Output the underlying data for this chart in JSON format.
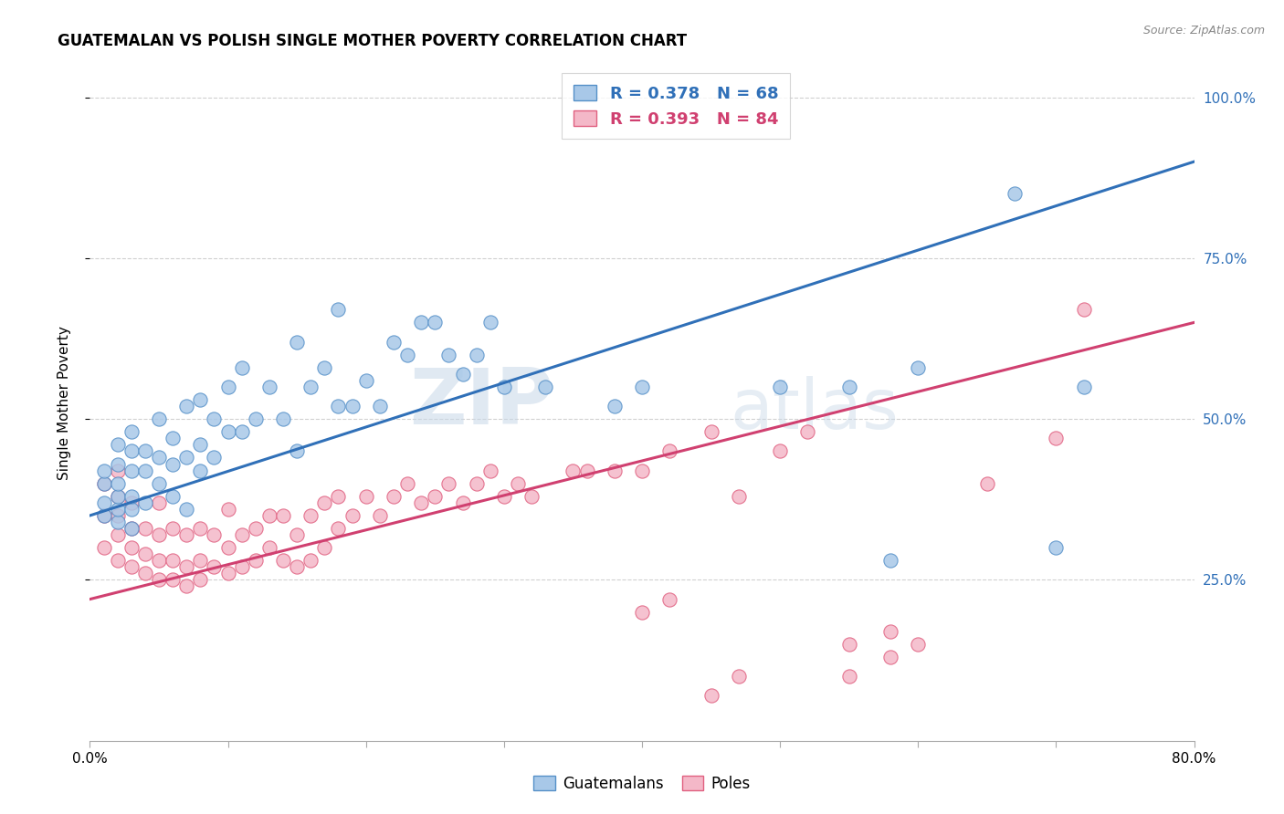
{
  "title": "GUATEMALAN VS POLISH SINGLE MOTHER POVERTY CORRELATION CHART",
  "source": "Source: ZipAtlas.com",
  "ylabel": "Single Mother Poverty",
  "legend_labels": [
    "Guatemalans",
    "Poles"
  ],
  "blue_R": 0.378,
  "blue_N": 68,
  "pink_R": 0.393,
  "pink_N": 84,
  "blue_color": "#a8c8e8",
  "pink_color": "#f4b8c8",
  "blue_edge_color": "#5590c8",
  "pink_edge_color": "#e06080",
  "blue_line_color": "#3070b8",
  "pink_line_color": "#d04070",
  "right_tick_color": "#3070b8",
  "ytick_labels": [
    "25.0%",
    "50.0%",
    "75.0%",
    "100.0%"
  ],
  "ytick_positions": [
    0.25,
    0.5,
    0.75,
    1.0
  ],
  "xmin": 0.0,
  "xmax": 0.8,
  "ymin": 0.0,
  "ymax": 1.05,
  "blue_line_x0": 0.0,
  "blue_line_y0": 0.35,
  "blue_line_x1": 0.8,
  "blue_line_y1": 0.9,
  "pink_line_x0": 0.0,
  "pink_line_y0": 0.22,
  "pink_line_x1": 0.8,
  "pink_line_y1": 0.65,
  "blue_scatter_x": [
    0.01,
    0.01,
    0.01,
    0.01,
    0.02,
    0.02,
    0.02,
    0.02,
    0.02,
    0.02,
    0.03,
    0.03,
    0.03,
    0.03,
    0.03,
    0.03,
    0.04,
    0.04,
    0.04,
    0.05,
    0.05,
    0.05,
    0.06,
    0.06,
    0.06,
    0.07,
    0.07,
    0.07,
    0.08,
    0.08,
    0.08,
    0.09,
    0.09,
    0.1,
    0.1,
    0.11,
    0.11,
    0.12,
    0.13,
    0.14,
    0.15,
    0.15,
    0.16,
    0.17,
    0.18,
    0.18,
    0.19,
    0.2,
    0.21,
    0.22,
    0.23,
    0.24,
    0.25,
    0.26,
    0.27,
    0.28,
    0.29,
    0.3,
    0.33,
    0.38,
    0.4,
    0.5,
    0.55,
    0.58,
    0.6,
    0.67,
    0.7,
    0.72
  ],
  "blue_scatter_y": [
    0.35,
    0.37,
    0.4,
    0.42,
    0.34,
    0.36,
    0.38,
    0.4,
    0.43,
    0.46,
    0.33,
    0.36,
    0.38,
    0.42,
    0.45,
    0.48,
    0.37,
    0.42,
    0.45,
    0.4,
    0.44,
    0.5,
    0.38,
    0.43,
    0.47,
    0.36,
    0.44,
    0.52,
    0.42,
    0.46,
    0.53,
    0.44,
    0.5,
    0.48,
    0.55,
    0.48,
    0.58,
    0.5,
    0.55,
    0.5,
    0.45,
    0.62,
    0.55,
    0.58,
    0.52,
    0.67,
    0.52,
    0.56,
    0.52,
    0.62,
    0.6,
    0.65,
    0.65,
    0.6,
    0.57,
    0.6,
    0.65,
    0.55,
    0.55,
    0.52,
    0.55,
    0.55,
    0.55,
    0.28,
    0.58,
    0.85,
    0.3,
    0.55
  ],
  "pink_scatter_x": [
    0.01,
    0.01,
    0.01,
    0.02,
    0.02,
    0.02,
    0.02,
    0.02,
    0.03,
    0.03,
    0.03,
    0.03,
    0.04,
    0.04,
    0.04,
    0.05,
    0.05,
    0.05,
    0.05,
    0.06,
    0.06,
    0.06,
    0.07,
    0.07,
    0.07,
    0.08,
    0.08,
    0.08,
    0.09,
    0.09,
    0.1,
    0.1,
    0.1,
    0.11,
    0.11,
    0.12,
    0.12,
    0.13,
    0.13,
    0.14,
    0.14,
    0.15,
    0.15,
    0.16,
    0.16,
    0.17,
    0.17,
    0.18,
    0.18,
    0.19,
    0.2,
    0.21,
    0.22,
    0.23,
    0.24,
    0.25,
    0.26,
    0.27,
    0.28,
    0.29,
    0.3,
    0.31,
    0.32,
    0.35,
    0.36,
    0.38,
    0.4,
    0.42,
    0.45,
    0.47,
    0.5,
    0.52,
    0.55,
    0.58,
    0.6,
    0.65,
    0.7,
    0.72,
    0.55,
    0.58,
    0.4,
    0.42,
    0.45,
    0.47
  ],
  "pink_scatter_y": [
    0.3,
    0.35,
    0.4,
    0.28,
    0.32,
    0.35,
    0.38,
    0.42,
    0.27,
    0.3,
    0.33,
    0.37,
    0.26,
    0.29,
    0.33,
    0.25,
    0.28,
    0.32,
    0.37,
    0.25,
    0.28,
    0.33,
    0.24,
    0.27,
    0.32,
    0.25,
    0.28,
    0.33,
    0.27,
    0.32,
    0.26,
    0.3,
    0.36,
    0.27,
    0.32,
    0.28,
    0.33,
    0.3,
    0.35,
    0.28,
    0.35,
    0.27,
    0.32,
    0.28,
    0.35,
    0.3,
    0.37,
    0.33,
    0.38,
    0.35,
    0.38,
    0.35,
    0.38,
    0.4,
    0.37,
    0.38,
    0.4,
    0.37,
    0.4,
    0.42,
    0.38,
    0.4,
    0.38,
    0.42,
    0.42,
    0.42,
    0.42,
    0.45,
    0.48,
    0.38,
    0.45,
    0.48,
    0.15,
    0.17,
    0.15,
    0.4,
    0.47,
    0.67,
    0.1,
    0.13,
    0.2,
    0.22,
    0.07,
    0.1
  ],
  "watermark_text": "ZIP",
  "watermark_text2": "atlas",
  "background_color": "#ffffff",
  "grid_color": "#d0d0d0",
  "title_fontsize": 12,
  "axis_label_fontsize": 11,
  "tick_fontsize": 11,
  "legend_fontsize": 13
}
